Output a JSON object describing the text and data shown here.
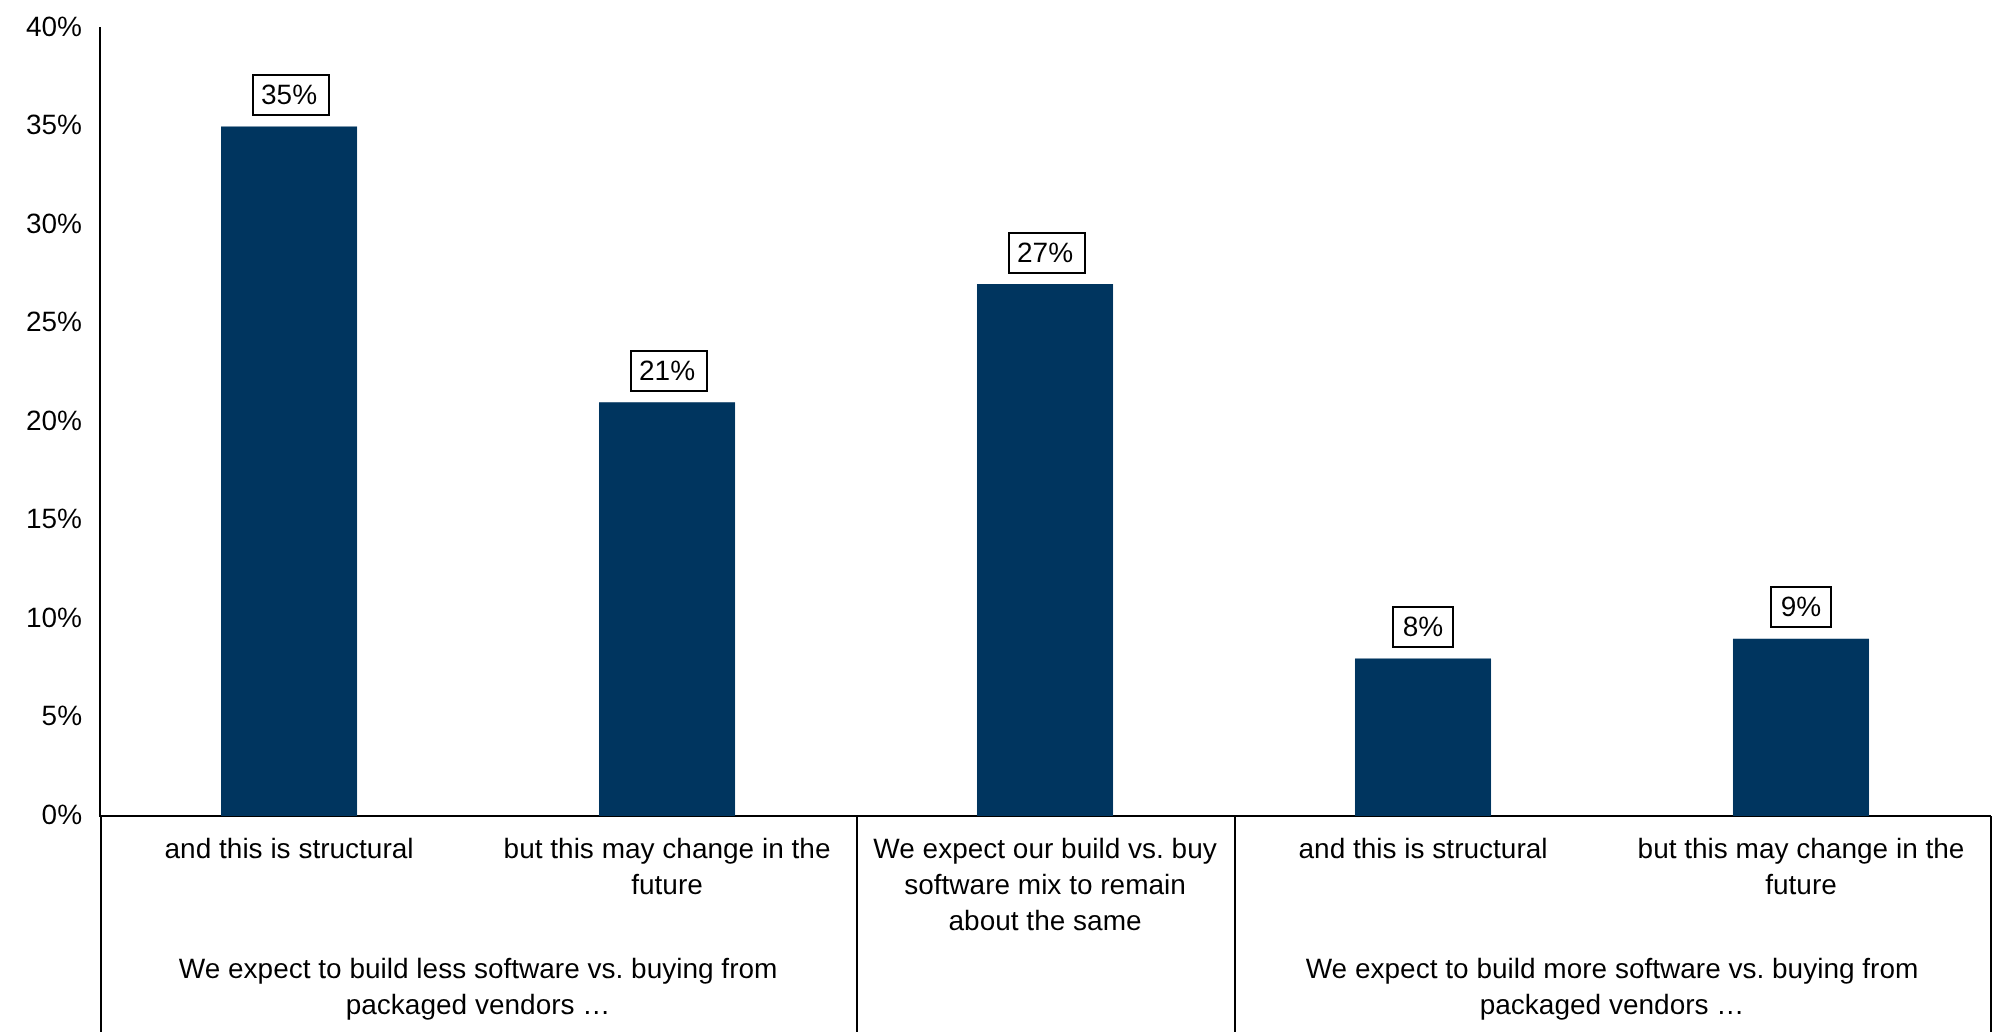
{
  "chart_data": {
    "type": "bar",
    "categories": [
      "and this is structural",
      "but this may change in the future",
      "We expect our build vs. buy software mix to remain about the same",
      "and this is structural",
      "but this may change in the future"
    ],
    "values": [
      35,
      21,
      27,
      8,
      9
    ],
    "color": "#00355f",
    "value_labels": [
      "35%",
      "21%",
      "27%",
      "8%",
      "9%"
    ],
    "ylim": [
      0,
      40
    ],
    "yticks": [
      {
        "value": 0,
        "label": "0%"
      },
      {
        "value": 5,
        "label": "5%"
      },
      {
        "value": 10,
        "label": "10%"
      },
      {
        "value": 15,
        "label": "15%"
      },
      {
        "value": 20,
        "label": "20%"
      },
      {
        "value": 25,
        "label": "25%"
      },
      {
        "value": 30,
        "label": "30%"
      },
      {
        "value": 35,
        "label": "35%"
      },
      {
        "value": 40,
        "label": "40%"
      }
    ],
    "grid": false,
    "legend": false,
    "annotations": [
      "We expect to build less software vs. buying from packaged vendors …",
      "We expect to build more software vs. buying from packaged vendors …"
    ]
  }
}
